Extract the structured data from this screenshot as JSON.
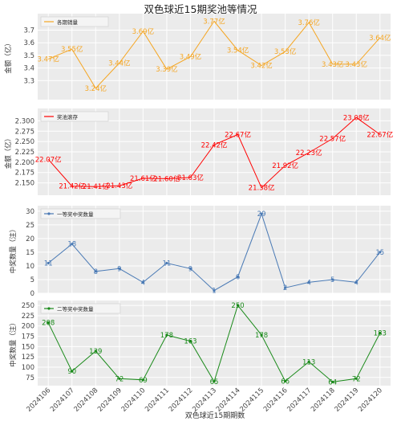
{
  "figure": {
    "title": "双色球近15期奖池等情况",
    "xlabel": "双色球近15期期数",
    "background": "#ffffff",
    "panel_background": "#ebebeb",
    "grid_color": "#ffffff"
  },
  "chart_data": [
    {
      "type": "line",
      "categories": [
        "2024106",
        "2024107",
        "2024108",
        "2024109",
        "2024110",
        "2024111",
        "2024112",
        "2024113",
        "2024114",
        "2024115",
        "2024116",
        "2024117",
        "2024118",
        "2024119",
        "2024120"
      ],
      "series": [
        {
          "name": "各期销量",
          "color": "#f5a623",
          "values": [
            3.47,
            3.55,
            3.24,
            3.44,
            3.69,
            3.39,
            3.49,
            3.77,
            3.54,
            3.42,
            3.53,
            3.76,
            3.43,
            3.43,
            3.64
          ],
          "labels": [
            "3.47亿",
            "3.55亿",
            "3.24亿",
            "3.44亿",
            "3.69亿",
            "3.39亿",
            "3.49亿",
            "3.77亿",
            "3.54亿",
            "3.42亿",
            "3.53亿",
            "3.76亿",
            "3.43亿",
            "3.43亿",
            "3.64亿"
          ]
        }
      ],
      "ylabel": "金额（亿）",
      "ylim": [
        3.15,
        3.83
      ],
      "yticks": [
        3.3,
        3.4,
        3.5,
        3.6,
        3.7
      ],
      "ytick_labels": [
        "3.3",
        "3.4",
        "3.5",
        "3.6",
        "3.7"
      ],
      "grid": true,
      "legend": "top-left"
    },
    {
      "type": "line",
      "categories": [
        "2024106",
        "2024107",
        "2024108",
        "2024109",
        "2024110",
        "2024111",
        "2024112",
        "2024113",
        "2024114",
        "2024115",
        "2024116",
        "2024117",
        "2024118",
        "2024119",
        "2024120"
      ],
      "series": [
        {
          "name": "奖池滚存",
          "color": "#ff0000",
          "values": [
            22.07,
            21.42,
            21.41,
            21.43,
            21.61,
            21.6,
            21.63,
            22.42,
            22.67,
            21.38,
            21.92,
            22.23,
            22.57,
            23.08,
            22.67
          ],
          "labels": [
            "22.07亿",
            "21.42亿",
            "21.41亿",
            "21.43亿",
            "21.61亿",
            "21.60亿",
            "21.63亿",
            "22.42亿",
            "22.67亿",
            "21.38亿",
            "21.92亿",
            "22.23亿",
            "22.57亿",
            "23.08亿",
            "22.67亿"
          ]
        }
      ],
      "ylabel": "金额（亿）",
      "ylim": [
        2.12,
        2.33
      ],
      "yticks": [
        2.15,
        2.175,
        2.2,
        2.225,
        2.25,
        2.275,
        2.3
      ],
      "ytick_labels": [
        "2.150",
        "2.175",
        "2.200",
        "2.225",
        "2.250",
        "2.275",
        "2.300"
      ],
      "grid": true,
      "legend": "top-left"
    },
    {
      "type": "line",
      "categories": [
        "2024106",
        "2024107",
        "2024108",
        "2024109",
        "2024110",
        "2024111",
        "2024112",
        "2024113",
        "2024114",
        "2024115",
        "2024116",
        "2024117",
        "2024118",
        "2024119",
        "2024120"
      ],
      "series": [
        {
          "name": "一等奖中奖数量",
          "color": "#4a7ab5",
          "values": [
            11,
            18,
            8,
            9,
            4,
            11,
            9,
            1,
            6,
            29,
            2,
            4,
            5,
            4,
            15
          ],
          "labels": [
            "11",
            "18",
            "8",
            "9",
            "4",
            "11",
            "9",
            "1",
            "6",
            "29",
            "2",
            "4",
            "5",
            "4",
            "15"
          ]
        }
      ],
      "ylabel": "中奖数量（注）",
      "ylim": [
        0,
        32
      ],
      "yticks": [
        0,
        5,
        10,
        15,
        20,
        25,
        30
      ],
      "ytick_labels": [
        "0",
        "5",
        "10",
        "15",
        "20",
        "25",
        "30"
      ],
      "grid": true,
      "legend": "top-left"
    },
    {
      "type": "line",
      "categories": [
        "2024106",
        "2024107",
        "2024108",
        "2024109",
        "2024110",
        "2024111",
        "2024112",
        "2024113",
        "2024114",
        "2024115",
        "2024116",
        "2024117",
        "2024118",
        "2024119",
        "2024120"
      ],
      "series": [
        {
          "name": "二等奖中奖数量",
          "color": "#1a8a1a",
          "values": [
            208,
            90,
            139,
            72,
            69,
            178,
            163,
            65,
            250,
            178,
            66,
            113,
            64,
            72,
            183
          ],
          "labels": [
            "208",
            "90",
            "139",
            "72",
            "69",
            "178",
            "163",
            "65",
            "250",
            "178",
            "66",
            "113",
            "64",
            "72",
            "183"
          ]
        }
      ],
      "ylabel": "中奖数量（注）",
      "ylim": [
        55,
        262
      ],
      "yticks": [
        75,
        100,
        125,
        150,
        175,
        200,
        225,
        250
      ],
      "ytick_labels": [
        "75",
        "100",
        "125",
        "150",
        "175",
        "200",
        "225",
        "250"
      ],
      "grid": true,
      "legend": "top-left"
    }
  ]
}
